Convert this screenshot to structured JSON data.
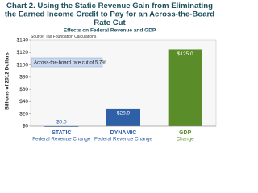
{
  "chart_data": {
    "type": "bar",
    "title": "Chart 2. Using the Static Revenue Gain from Eliminating the Earned Income Credit to Pay for an Across-the-Board Rate Cut",
    "subtitle": "Effects on Federal Revenue and GDP",
    "source": "Source: Tax Foundation Calculations",
    "annotation": "Across-the-board rate cut of 5.7%",
    "y_label": "Billions of 2012 Dollars",
    "categories": [
      "STATIC",
      "DYNAMIC",
      "GDP"
    ],
    "category_sublabels": [
      "Federal Revenue Change",
      "Federal Revenue Change",
      "Change"
    ],
    "values": [
      0.0,
      28.9,
      125.0
    ],
    "value_labels": [
      "$0.0",
      "$28.9",
      "$125.0"
    ],
    "colors": [
      "#2f5fa7",
      "#2f5fa7",
      "#5b8c2a"
    ],
    "ylim": [
      0,
      140
    ],
    "yticks": [
      {
        "value": 0,
        "label": "$0"
      },
      {
        "value": 20,
        "label": "$20"
      },
      {
        "value": 40,
        "label": "$40"
      },
      {
        "value": 60,
        "label": "$60"
      },
      {
        "value": 80,
        "label": "$80"
      },
      {
        "value": 100,
        "label": "$100"
      },
      {
        "value": 120,
        "label": "$120"
      },
      {
        "value": 140,
        "label": "$140"
      }
    ]
  }
}
